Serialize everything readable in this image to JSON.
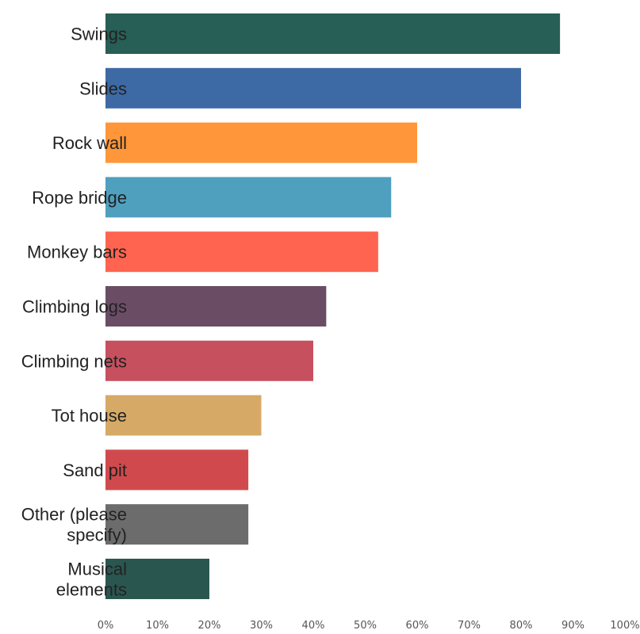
{
  "chart_data": {
    "type": "bar",
    "orientation": "horizontal",
    "categories": [
      "Swings",
      "Slides",
      "Rock wall",
      "Rope bridge",
      "Monkey bars",
      "Climbing logs",
      "Climbing nets",
      "Tot house",
      "Sand pit",
      "Other (please specify)",
      "Musical elements"
    ],
    "category_lines": [
      [
        "Swings"
      ],
      [
        "Slides"
      ],
      [
        "Rock wall"
      ],
      [
        "Rope bridge"
      ],
      [
        "Monkey bars"
      ],
      [
        "Climbing logs"
      ],
      [
        "Climbing nets"
      ],
      [
        "Tot house"
      ],
      [
        "Sand pit"
      ],
      [
        "Other (please",
        "specify)"
      ],
      [
        "Musical",
        "elements"
      ]
    ],
    "values": [
      87.5,
      80,
      60,
      55,
      52.5,
      42.5,
      40,
      30,
      27.5,
      27.5,
      20
    ],
    "colors": [
      "#275e55",
      "#3d6aa5",
      "#ff9639",
      "#4f9fbf",
      "#ff6450",
      "#6a4d65",
      "#c7505f",
      "#d6a966",
      "#d04a4d",
      "#6c6c6c",
      "#2a5650"
    ],
    "xlim": [
      0,
      100
    ],
    "x_ticks": [
      "0%",
      "10%",
      "20%",
      "30%",
      "40%",
      "50%",
      "60%",
      "70%",
      "80%",
      "90%",
      "100%"
    ],
    "title": "",
    "xlabel": "",
    "ylabel": "",
    "grid": false,
    "legend": "none"
  }
}
